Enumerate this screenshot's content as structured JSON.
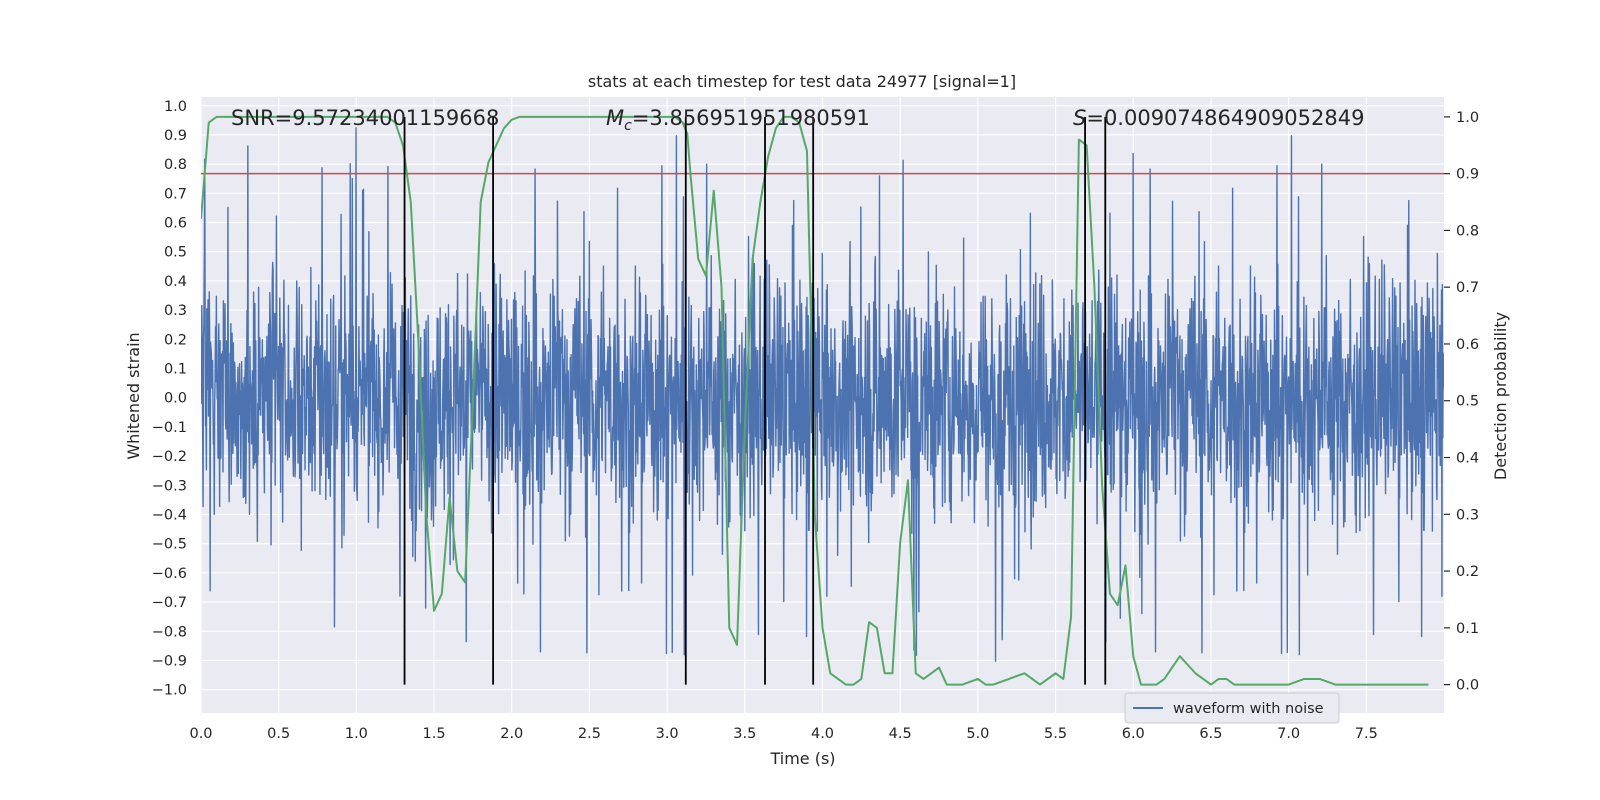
{
  "chart_data": {
    "type": "line",
    "title": "stats at each timestep for test data 24977 [signal=1]",
    "xlabel": "Time (s)",
    "ylabel_left": "Whitened strain",
    "ylabel_right": "Detection probability",
    "xlim": [
      0.0,
      8.0
    ],
    "ylim_left": [
      -1.08,
      1.03
    ],
    "ylim_right": [
      -0.05,
      1.035
    ],
    "x_ticks": [
      "0.0",
      "0.5",
      "1.0",
      "1.5",
      "2.0",
      "2.5",
      "3.0",
      "3.5",
      "4.0",
      "4.5",
      "5.0",
      "5.5",
      "6.0",
      "6.5",
      "7.0",
      "7.5"
    ],
    "y_ticks_left": [
      "1.0",
      "0.9",
      "0.8",
      "0.7",
      "0.6",
      "0.5",
      "0.4",
      "0.3",
      "0.2",
      "0.1",
      "0.0",
      "-0.1",
      "-0.2",
      "-0.3",
      "-0.4",
      "-0.5",
      "-0.6",
      "-0.7",
      "-0.8",
      "-0.9",
      "-1.0"
    ],
    "y_ticks_right": [
      "1.0",
      "0.9",
      "0.8",
      "0.7",
      "0.6",
      "0.5",
      "0.4",
      "0.3",
      "0.2",
      "0.1",
      "0.0"
    ],
    "grid": true,
    "annotations": {
      "snr_name": "SNR",
      "snr_value": "=9.57234001159668",
      "mc_symbol": "M",
      "mc_subscript": "c",
      "mc_value": "=3.856951951980591",
      "s_symbol": "S",
      "s_value": "=0.009074864909052849"
    },
    "legend": {
      "label": "waveform with noise",
      "location": "lower-right"
    },
    "colors": {
      "background": "#eaeaf2",
      "grid": "#ffffff",
      "waveform": "#4c72b0",
      "probability": "#55a868",
      "threshold": "#c44e52",
      "markers": "#000000"
    },
    "threshold_probability": 0.9,
    "event_boundaries_s": [
      1.31,
      1.88,
      3.12,
      3.63,
      3.94,
      5.69,
      5.82
    ],
    "waveform": {
      "description": "whitened strain with noise, dense samples over 0–8 s",
      "peak_max": 0.93,
      "peak_min": -1.0
    },
    "series": [
      {
        "name": "detection probability",
        "x": [
          0.0,
          0.05,
          0.1,
          0.2,
          0.4,
          0.6,
          0.8,
          1.0,
          1.1,
          1.2,
          1.25,
          1.3,
          1.35,
          1.4,
          1.45,
          1.5,
          1.55,
          1.6,
          1.65,
          1.7,
          1.75,
          1.8,
          1.85,
          1.9,
          1.95,
          2.0,
          2.05,
          2.1,
          2.15,
          2.2,
          2.3,
          2.4,
          2.5,
          2.6,
          2.7,
          2.8,
          2.9,
          3.0,
          3.05,
          3.1,
          3.13,
          3.15,
          3.2,
          3.25,
          3.3,
          3.35,
          3.4,
          3.45,
          3.5,
          3.55,
          3.6,
          3.65,
          3.7,
          3.75,
          3.8,
          3.85,
          3.9,
          3.93,
          3.95,
          4.0,
          4.05,
          4.1,
          4.15,
          4.2,
          4.25,
          4.3,
          4.35,
          4.4,
          4.45,
          4.5,
          4.55,
          4.6,
          4.65,
          4.7,
          4.75,
          4.8,
          4.85,
          4.9,
          5.0,
          5.05,
          5.1,
          5.2,
          5.3,
          5.4,
          5.5,
          5.55,
          5.6,
          5.65,
          5.7,
          5.75,
          5.8,
          5.85,
          5.9,
          5.95,
          6.0,
          6.05,
          6.1,
          6.15,
          6.2,
          6.3,
          6.4,
          6.5,
          6.55,
          6.6,
          6.65,
          6.7,
          6.75,
          6.8,
          6.9,
          7.0,
          7.1,
          7.2,
          7.3,
          7.4,
          7.5,
          7.6,
          7.7,
          7.8,
          7.9
        ],
        "values": [
          0.82,
          0.99,
          1.0,
          1.0,
          1.0,
          1.0,
          1.0,
          1.0,
          1.0,
          1.0,
          0.99,
          0.95,
          0.85,
          0.6,
          0.3,
          0.13,
          0.16,
          0.33,
          0.2,
          0.18,
          0.5,
          0.85,
          0.92,
          0.95,
          0.98,
          0.995,
          1.0,
          1.0,
          1.0,
          1.0,
          1.0,
          1.0,
          1.0,
          1.0,
          1.0,
          1.0,
          1.0,
          1.0,
          1.0,
          0.99,
          0.97,
          0.9,
          0.75,
          0.72,
          0.87,
          0.7,
          0.1,
          0.07,
          0.45,
          0.75,
          0.85,
          0.93,
          0.98,
          1.0,
          1.0,
          0.99,
          0.94,
          0.6,
          0.3,
          0.1,
          0.02,
          0.01,
          0.0,
          0.0,
          0.01,
          0.11,
          0.1,
          0.02,
          0.02,
          0.25,
          0.36,
          0.02,
          0.01,
          0.02,
          0.03,
          0.0,
          0.0,
          0.0,
          0.01,
          0.0,
          0.0,
          0.01,
          0.02,
          0.0,
          0.02,
          0.01,
          0.12,
          0.96,
          0.95,
          0.7,
          0.35,
          0.16,
          0.14,
          0.21,
          0.05,
          0.0,
          0.0,
          0.0,
          0.01,
          0.05,
          0.02,
          0.0,
          0.01,
          0.01,
          0.0,
          0.0,
          0.0,
          0.0,
          0.0,
          0.0,
          0.01,
          0.01,
          0.0,
          0.0,
          0.0,
          0.0,
          0.0,
          0.0,
          0.0
        ]
      }
    ]
  }
}
